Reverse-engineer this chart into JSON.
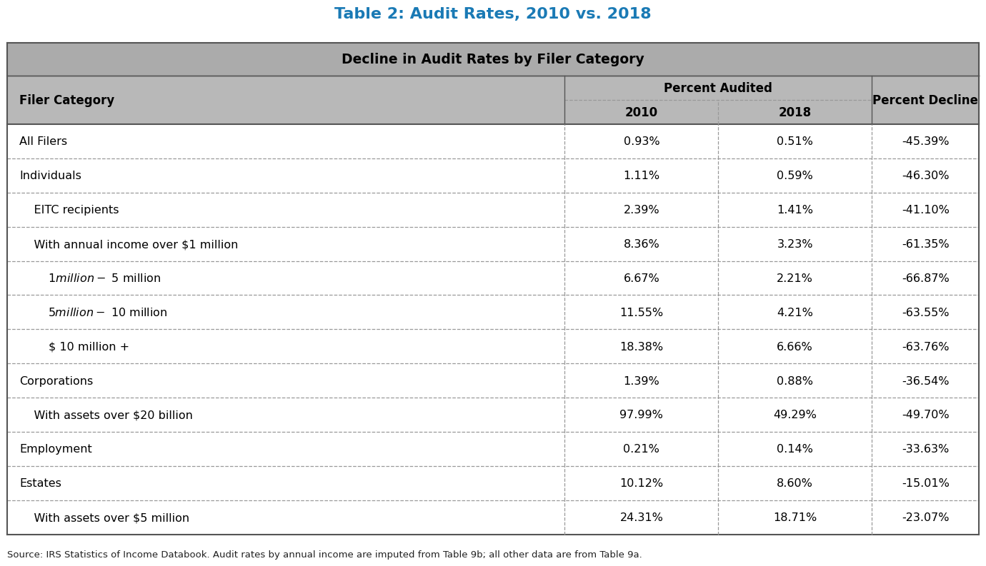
{
  "title": "Table 2: Audit Rates, 2010 vs. 2018",
  "title_color": "#1a7ab5",
  "subtitle": "Decline in Audit Rates by Filer Category",
  "subtitle_bg": "#a8a8a8",
  "header_bg": "#b8b8b8",
  "group_header": "Percent Audited",
  "col_headers": [
    "Filer Category",
    "2010",
    "2018",
    "Percent Decline"
  ],
  "rows": [
    {
      "category": "All Filers",
      "indent": 0,
      "val2010": "0.93%",
      "val2018": "0.51%",
      "decline": "-45.39%"
    },
    {
      "category": "Individuals",
      "indent": 0,
      "val2010": "1.11%",
      "val2018": "0.59%",
      "decline": "-46.30%"
    },
    {
      "category": "    EITC recipients",
      "indent": 1,
      "val2010": "2.39%",
      "val2018": "1.41%",
      "decline": "-41.10%"
    },
    {
      "category": "    With annual income over $1 million",
      "indent": 1,
      "val2010": "8.36%",
      "val2018": "3.23%",
      "decline": "-61.35%"
    },
    {
      "category": "        $1 million - $ 5 million",
      "indent": 2,
      "val2010": "6.67%",
      "val2018": "2.21%",
      "decline": "-66.87%"
    },
    {
      "category": "        $5 million - $ 10 million",
      "indent": 2,
      "val2010": "11.55%",
      "val2018": "4.21%",
      "decline": "-63.55%"
    },
    {
      "category": "        $ 10 million +",
      "indent": 2,
      "val2010": "18.38%",
      "val2018": "6.66%",
      "decline": "-63.76%"
    },
    {
      "category": "Corporations",
      "indent": 0,
      "val2010": "1.39%",
      "val2018": "0.88%",
      "decline": "-36.54%"
    },
    {
      "category": "    With assets over $20 billion",
      "indent": 1,
      "val2010": "97.99%",
      "val2018": "49.29%",
      "decline": "-49.70%"
    },
    {
      "category": "Employment",
      "indent": 0,
      "val2010": "0.21%",
      "val2018": "0.14%",
      "decline": "-33.63%"
    },
    {
      "category": "Estates",
      "indent": 0,
      "val2010": "10.12%",
      "val2018": "8.60%",
      "decline": "-15.01%"
    },
    {
      "category": "    With assets over $5 million",
      "indent": 1,
      "val2010": "24.31%",
      "val2018": "18.71%",
      "decline": "-23.07%"
    }
  ],
  "footnote": "Source: IRS Statistics of Income Databook. Audit rates by annual income are imputed from Table 9b; all other data are from Table 9a.",
  "bg_color": "#ffffff",
  "line_color_solid": "#555555",
  "line_color_dashed": "#999999"
}
